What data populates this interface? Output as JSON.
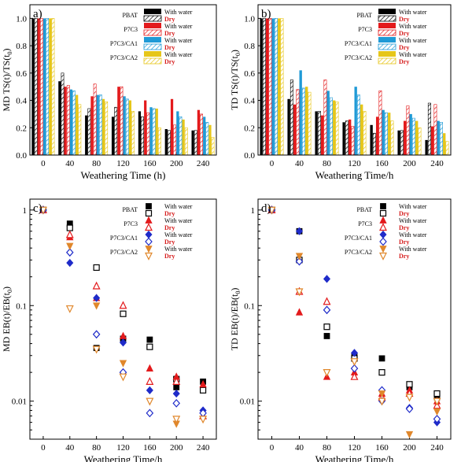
{
  "chart_data": [
    {
      "panel_label": "a)",
      "type": "bar",
      "ylabel": "MD TS(t)/TS(t",
      "ylabel_sub": "0",
      "ylabel_end": ")",
      "xlabel": "Weathering Time (h)",
      "categories": [
        "0",
        "40",
        "80",
        "120",
        "160",
        "200",
        "240"
      ],
      "ylim": [
        0,
        1.1
      ],
      "yticks": [
        "0.0",
        "0.2",
        "0.4",
        "0.6",
        "0.8",
        "1.0"
      ],
      "series": [
        {
          "name": "PBAT",
          "cond": "With water",
          "values": [
            1.0,
            0.54,
            0.29,
            0.28,
            0.32,
            0.19,
            0.18
          ]
        },
        {
          "name": "PBAT",
          "cond": "Dry",
          "values": [
            1.0,
            0.6,
            0.34,
            0.35,
            0.28,
            0.18,
            0.18
          ]
        },
        {
          "name": "P7C3",
          "cond": "With water",
          "values": [
            1.0,
            0.5,
            0.43,
            0.5,
            0.4,
            0.41,
            0.33
          ]
        },
        {
          "name": "P7C3",
          "cond": "Dry",
          "values": [
            1.0,
            0.51,
            0.52,
            0.5,
            0.31,
            0.22,
            0.3
          ]
        },
        {
          "name": "P7C3/CA1",
          "cond": "With water",
          "values": [
            1.0,
            0.48,
            0.44,
            0.43,
            0.35,
            0.32,
            0.28
          ]
        },
        {
          "name": "P7C3/CA1",
          "cond": "Dry",
          "values": [
            1.0,
            0.47,
            0.44,
            0.41,
            0.34,
            0.28,
            0.24
          ]
        },
        {
          "name": "P7C3/CA2",
          "cond": "With water",
          "values": [
            1.0,
            0.44,
            0.41,
            0.4,
            0.34,
            0.26,
            0.22
          ]
        },
        {
          "name": "P7C3/CA2",
          "cond": "Dry",
          "values": [
            1.0,
            0.37,
            0.39,
            0.32,
            0.2,
            0.2,
            0.13
          ]
        }
      ],
      "legend_position": "top-right"
    },
    {
      "panel_label": "b)",
      "type": "bar",
      "ylabel": "TD TS(t)/TS(t",
      "ylabel_sub": "0",
      "ylabel_end": ")",
      "xlabel": "Weathering Time/h",
      "categories": [
        "0",
        "40",
        "80",
        "120",
        "160",
        "200",
        "240"
      ],
      "ylim": [
        0,
        1.1
      ],
      "yticks": [
        "0.0",
        "0.2",
        "0.4",
        "0.6",
        "0.8",
        "1.0"
      ],
      "series": [
        {
          "name": "PBAT",
          "cond": "With water",
          "values": [
            1.0,
            0.41,
            0.32,
            0.24,
            0.22,
            0.18,
            0.11
          ]
        },
        {
          "name": "PBAT",
          "cond": "Dry",
          "values": [
            1.0,
            0.55,
            0.32,
            0.25,
            0.16,
            0.18,
            0.38
          ]
        },
        {
          "name": "P7C3",
          "cond": "With water",
          "values": [
            1.0,
            0.37,
            0.29,
            0.26,
            0.28,
            0.25,
            0.21
          ]
        },
        {
          "name": "P7C3",
          "cond": "Dry",
          "values": [
            1.0,
            0.48,
            0.55,
            0.21,
            0.47,
            0.36,
            0.37
          ]
        },
        {
          "name": "P7C3/CA1",
          "cond": "With water",
          "values": [
            1.0,
            0.62,
            0.47,
            0.5,
            0.33,
            0.3,
            0.25
          ]
        },
        {
          "name": "P7C3/CA1",
          "cond": "Dry",
          "values": [
            1.0,
            0.49,
            0.42,
            0.44,
            0.31,
            0.27,
            0.24
          ]
        },
        {
          "name": "P7C3/CA2",
          "cond": "With water",
          "values": [
            1.0,
            0.5,
            0.4,
            0.37,
            0.31,
            0.25,
            0.16
          ]
        },
        {
          "name": "P7C3/CA2",
          "cond": "Dry",
          "values": [
            1.0,
            0.46,
            0.39,
            0.32,
            0.25,
            0.2,
            0.1
          ]
        }
      ],
      "legend_position": "top-right"
    },
    {
      "panel_label": "c)",
      "type": "scatter",
      "ylabel": "MD EB(t)/EB(t",
      "ylabel_sub": "0",
      "ylabel_end": ")",
      "xlabel": "Weathering Time/h",
      "x": [
        0,
        40,
        80,
        120,
        160,
        200,
        240
      ],
      "xticks": [
        "0",
        "40",
        "80",
        "120",
        "160",
        "200",
        "240"
      ],
      "ylim": [
        0.004,
        1.3
      ],
      "yscale": "log",
      "yticks": [
        "0.01",
        "0.1",
        "1"
      ],
      "series": [
        {
          "name": "PBAT",
          "cond": "With water",
          "values": [
            1.0,
            0.72,
            0.036,
            0.045,
            0.044,
            0.014,
            0.016
          ]
        },
        {
          "name": "PBAT",
          "cond": "Dry",
          "values": [
            1.0,
            0.65,
            0.25,
            0.082,
            0.037,
            0.017,
            0.013
          ]
        },
        {
          "name": "P7C3",
          "cond": "With water",
          "values": [
            1.0,
            0.52,
            0.12,
            0.048,
            0.022,
            0.018,
            0.015
          ]
        },
        {
          "name": "P7C3",
          "cond": "Dry",
          "values": [
            1.0,
            0.55,
            0.16,
            0.1,
            0.016,
            0.016,
            0.007
          ]
        },
        {
          "name": "P7C3/CA1",
          "cond": "With water",
          "values": [
            1.0,
            0.28,
            0.12,
            0.041,
            0.013,
            0.012,
            0.008
          ]
        },
        {
          "name": "P7C3/CA1",
          "cond": "Dry",
          "values": [
            1.0,
            0.36,
            0.05,
            0.02,
            0.0075,
            0.0095,
            0.0075
          ]
        },
        {
          "name": "P7C3/CA2",
          "cond": "With water",
          "values": [
            1.0,
            0.42,
            0.1,
            0.025,
            0.01,
            0.0058,
            0.0065
          ]
        },
        {
          "name": "P7C3/CA2",
          "cond": "Dry",
          "values": [
            1.0,
            0.093,
            0.035,
            0.018,
            0.01,
            0.0065,
            0.0065
          ]
        }
      ],
      "legend_position": "top-right"
    },
    {
      "panel_label": "d)",
      "type": "scatter",
      "ylabel": "TD EB(t)/EB(t",
      "ylabel_sub": "0",
      "ylabel_end": ")",
      "xlabel": "Weathering Time/h",
      "x": [
        0,
        40,
        80,
        120,
        160,
        200,
        240
      ],
      "xticks": [
        "0",
        "40",
        "80",
        "120",
        "160",
        "200",
        "240"
      ],
      "ylim": [
        0.004,
        1.3
      ],
      "yscale": "log",
      "yticks": [
        "0.01",
        "0.1",
        "1"
      ],
      "series": [
        {
          "name": "PBAT",
          "cond": "With water",
          "values": [
            1.0,
            0.6,
            0.048,
            0.03,
            0.028,
            0.014,
            0.011
          ]
        },
        {
          "name": "PBAT",
          "cond": "Dry",
          "values": [
            1.0,
            0.3,
            0.06,
            0.028,
            0.02,
            0.015,
            0.012
          ]
        },
        {
          "name": "P7C3",
          "cond": "With water",
          "values": [
            1.0,
            0.085,
            0.018,
            0.02,
            0.012,
            0.013,
            0.01
          ]
        },
        {
          "name": "P7C3",
          "cond": "Dry",
          "values": [
            1.0,
            0.14,
            0.11,
            0.018,
            0.011,
            0.012,
            0.009
          ]
        },
        {
          "name": "P7C3/CA1",
          "cond": "With water",
          "values": [
            1.0,
            0.6,
            0.19,
            0.032,
            0.01,
            0.0085,
            0.006
          ]
        },
        {
          "name": "P7C3/CA1",
          "cond": "Dry",
          "values": [
            1.0,
            0.29,
            0.09,
            0.022,
            0.013,
            0.0083,
            0.0065
          ]
        },
        {
          "name": "P7C3/CA2",
          "cond": "With water",
          "values": [
            1.0,
            0.33,
            0.02,
            0.026,
            0.012,
            0.0045,
            0.0078
          ]
        },
        {
          "name": "P7C3/CA2",
          "cond": "Dry",
          "values": [
            1.0,
            0.14,
            0.02,
            0.026,
            0.01,
            0.011,
            0.01
          ]
        }
      ],
      "legend_position": "top-right"
    }
  ],
  "legend": {
    "entries": [
      {
        "name": "PBAT",
        "water_label": "With water",
        "dry_label": "Dry"
      },
      {
        "name": "P7C3",
        "water_label": "With water",
        "dry_label": "Dry"
      },
      {
        "name": "P7C3/CA1",
        "water_label": "With water",
        "dry_label": "Dry"
      },
      {
        "name": "P7C3/CA2",
        "water_label": "With water",
        "dry_label": "Dry"
      }
    ]
  },
  "colors": {
    "PBAT": "#000000",
    "P7C3": "#e31a1c",
    "P7C3/CA1": "#1f9ad6",
    "P7C3/CA2": "#e6c619",
    "scatter_PBAT": "#000000",
    "scatter_P7C3": "#e31a1c",
    "scatter_P7C3/CA1": "#1f2bc9",
    "scatter_P7C3/CA2": "#e0872b",
    "dry_text": "#d61f1f"
  }
}
